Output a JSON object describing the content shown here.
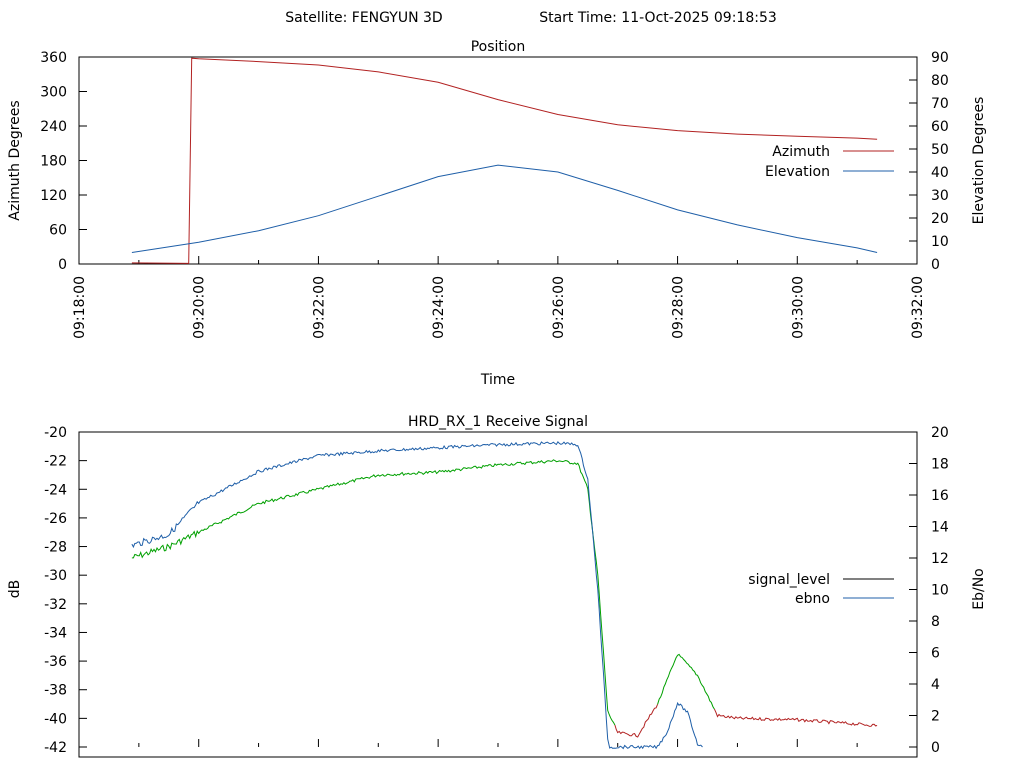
{
  "header": {
    "satellite": "Satellite: FENGYUN 3D",
    "start_time": "Start Time: 11-Oct-2025 09:18:53"
  },
  "chart_data": [
    {
      "type": "line",
      "title": "Position",
      "xlabel": "Time",
      "ylabel": "Azimuth Degrees",
      "y2label": "Elevation Degrees",
      "xlim": [
        "09:18:00",
        "09:32:00"
      ],
      "x_ticks": [
        "09:18:00",
        "09:20:00",
        "09:22:00",
        "09:24:00",
        "09:26:00",
        "09:28:00",
        "09:30:00",
        "09:32:00"
      ],
      "ylim": [
        0,
        360
      ],
      "y_ticks": [
        "0",
        "60",
        "120",
        "180",
        "240",
        "300",
        "360"
      ],
      "y2lim": [
        0,
        90
      ],
      "y2_ticks": [
        "0",
        "10",
        "20",
        "30",
        "40",
        "50",
        "60",
        "70",
        "80",
        "90"
      ],
      "legend_position": "right",
      "grid": false,
      "series": [
        {
          "name": "Azimuth",
          "axis": "left",
          "color": "#b22222",
          "points": [
            [
              "09:18:53",
              2
            ],
            [
              "09:19:50",
              1
            ],
            [
              "09:19:53",
              358
            ],
            [
              "09:20:00",
              357
            ],
            [
              "09:21:00",
              352
            ],
            [
              "09:22:00",
              346
            ],
            [
              "09:23:00",
              334
            ],
            [
              "09:24:00",
              316
            ],
            [
              "09:25:00",
              286
            ],
            [
              "09:26:00",
              260
            ],
            [
              "09:27:00",
              242
            ],
            [
              "09:28:00",
              232
            ],
            [
              "09:29:00",
              226
            ],
            [
              "09:30:00",
              222
            ],
            [
              "09:31:00",
              219
            ],
            [
              "09:31:20",
              217
            ]
          ]
        },
        {
          "name": "Elevation",
          "axis": "right",
          "color": "#1f5fa8",
          "points": [
            [
              "09:18:53",
              5
            ],
            [
              "09:20:00",
              9.5
            ],
            [
              "09:21:00",
              14.5
            ],
            [
              "09:22:00",
              21
            ],
            [
              "09:23:00",
              29.5
            ],
            [
              "09:24:00",
              38
            ],
            [
              "09:25:00",
              43
            ],
            [
              "09:26:00",
              40
            ],
            [
              "09:27:00",
              32
            ],
            [
              "09:28:00",
              23.5
            ],
            [
              "09:29:00",
              17
            ],
            [
              "09:30:00",
              11.5
            ],
            [
              "09:31:00",
              7
            ],
            [
              "09:31:20",
              5
            ]
          ]
        }
      ]
    },
    {
      "type": "line",
      "title": "HRD_RX_1 Receive Signal",
      "ylabel": "dB",
      "y2label": "Eb/No",
      "xlim": [
        "09:18:00",
        "09:32:00"
      ],
      "ylim": [
        -42,
        -20
      ],
      "y_ticks": [
        "-20",
        "-22",
        "-24",
        "-26",
        "-28",
        "-30",
        "-32",
        "-34",
        "-36",
        "-38",
        "-40",
        "-42"
      ],
      "y2lim": [
        0,
        20
      ],
      "y2_ticks": [
        "0",
        "2",
        "4",
        "6",
        "8",
        "10",
        "12",
        "14",
        "16",
        "18",
        "20"
      ],
      "legend_position": "right",
      "grid": false,
      "legend": [
        {
          "name": "signal_level",
          "color": "#000000"
        },
        {
          "name": "ebno",
          "color": "#1f5fa8"
        }
      ],
      "series": [
        {
          "name": "signal_level",
          "axis": "left",
          "color": "#00a000",
          "low_color": "#b22222",
          "points": [
            [
              "09:18:53",
              -28.8
            ],
            [
              "09:19:30",
              -28
            ],
            [
              "09:20:00",
              -27
            ],
            [
              "09:21:00",
              -25
            ],
            [
              "09:22:00",
              -24
            ],
            [
              "09:23:00",
              -23
            ],
            [
              "09:24:00",
              -22.8
            ],
            [
              "09:25:00",
              -22.3
            ],
            [
              "09:26:00",
              -22
            ],
            [
              "09:26:20",
              -22.2
            ],
            [
              "09:26:30",
              -24
            ],
            [
              "09:26:40",
              -30
            ],
            [
              "09:26:50",
              -39.5
            ],
            [
              "09:27:00",
              -41
            ],
            [
              "09:27:20",
              -41.2
            ],
            [
              "09:27:40",
              -39
            ],
            [
              "09:28:00",
              -35.5
            ],
            [
              "09:28:20",
              -37
            ],
            [
              "09:28:40",
              -39.8
            ],
            [
              "09:29:00",
              -40
            ],
            [
              "09:30:00",
              -40.1
            ],
            [
              "09:31:20",
              -40.5
            ]
          ]
        },
        {
          "name": "ebno",
          "axis": "right",
          "color": "#1f5fa8",
          "points": [
            [
              "09:18:53",
              12.8
            ],
            [
              "09:19:30",
              13.5
            ],
            [
              "09:20:00",
              15.5
            ],
            [
              "09:21:00",
              17.5
            ],
            [
              "09:22:00",
              18.5
            ],
            [
              "09:23:00",
              18.8
            ],
            [
              "09:24:00",
              19
            ],
            [
              "09:25:00",
              19.2
            ],
            [
              "09:26:00",
              19.3
            ],
            [
              "09:26:20",
              19.2
            ],
            [
              "09:26:30",
              17
            ],
            [
              "09:26:40",
              10
            ],
            [
              "09:26:50",
              0.5
            ],
            [
              "09:26:52",
              0
            ],
            [
              "09:27:40",
              0
            ],
            [
              "09:27:50",
              1
            ],
            [
              "09:28:00",
              2.8
            ],
            [
              "09:28:10",
              2.2
            ],
            [
              "09:28:20",
              0.2
            ],
            [
              "09:28:25",
              0
            ]
          ]
        }
      ]
    }
  ]
}
